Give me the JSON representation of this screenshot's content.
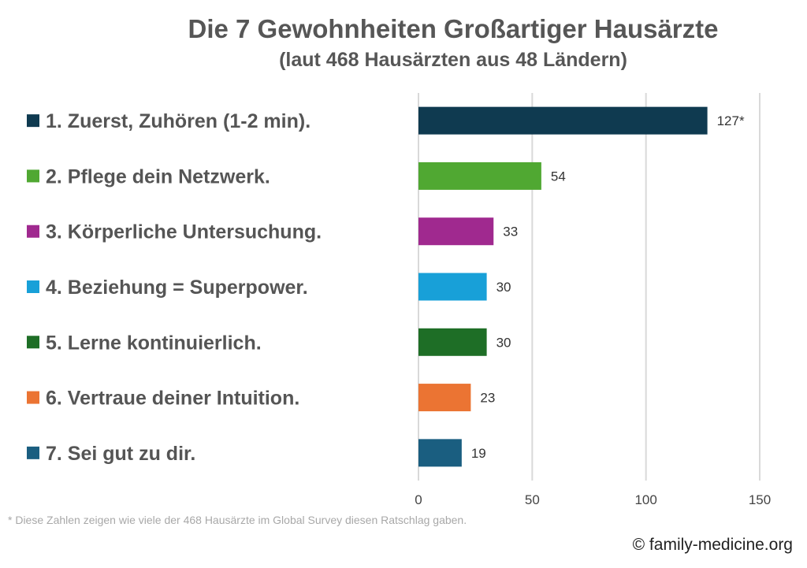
{
  "chart_data": {
    "type": "bar",
    "orientation": "horizontal",
    "title": "Die 7 Gewohnheiten Großartiger Hausärzte",
    "subtitle": "(laut 468 Hausärzten aus 48 Ländern)",
    "categories": [
      "1. Zuerst, Zuhören (1-2 min).",
      "2. Pflege dein Netzwerk.",
      "3. Körperliche Untersuchung.",
      "4. Beziehung = Superpower.",
      "5. Lerne kontinuierlich.",
      "6. Vertraue deiner Intuition.",
      "7. Sei gut zu dir."
    ],
    "values": [
      127,
      54,
      33,
      30,
      30,
      23,
      19
    ],
    "data_labels": [
      "127*",
      "54",
      "33",
      "30",
      "30",
      "23",
      "19"
    ],
    "colors": [
      "#0f3a50",
      "#50a832",
      "#a0298f",
      "#18a0d8",
      "#1e6e26",
      "#eb7433",
      "#1a5e80"
    ],
    "xlim": [
      0,
      150
    ],
    "xticks": [
      "0",
      "50",
      "100",
      "150"
    ],
    "xtick_values": [
      0,
      50,
      100,
      150
    ],
    "grid": true,
    "legend": "left",
    "xlabel": "",
    "ylabel": ""
  },
  "footnote": "* Diese Zahlen zeigen wie viele der 468 Hausärzte im Global Survey diesen Ratschlag gaben.",
  "copyright": "© family-medicine.org"
}
